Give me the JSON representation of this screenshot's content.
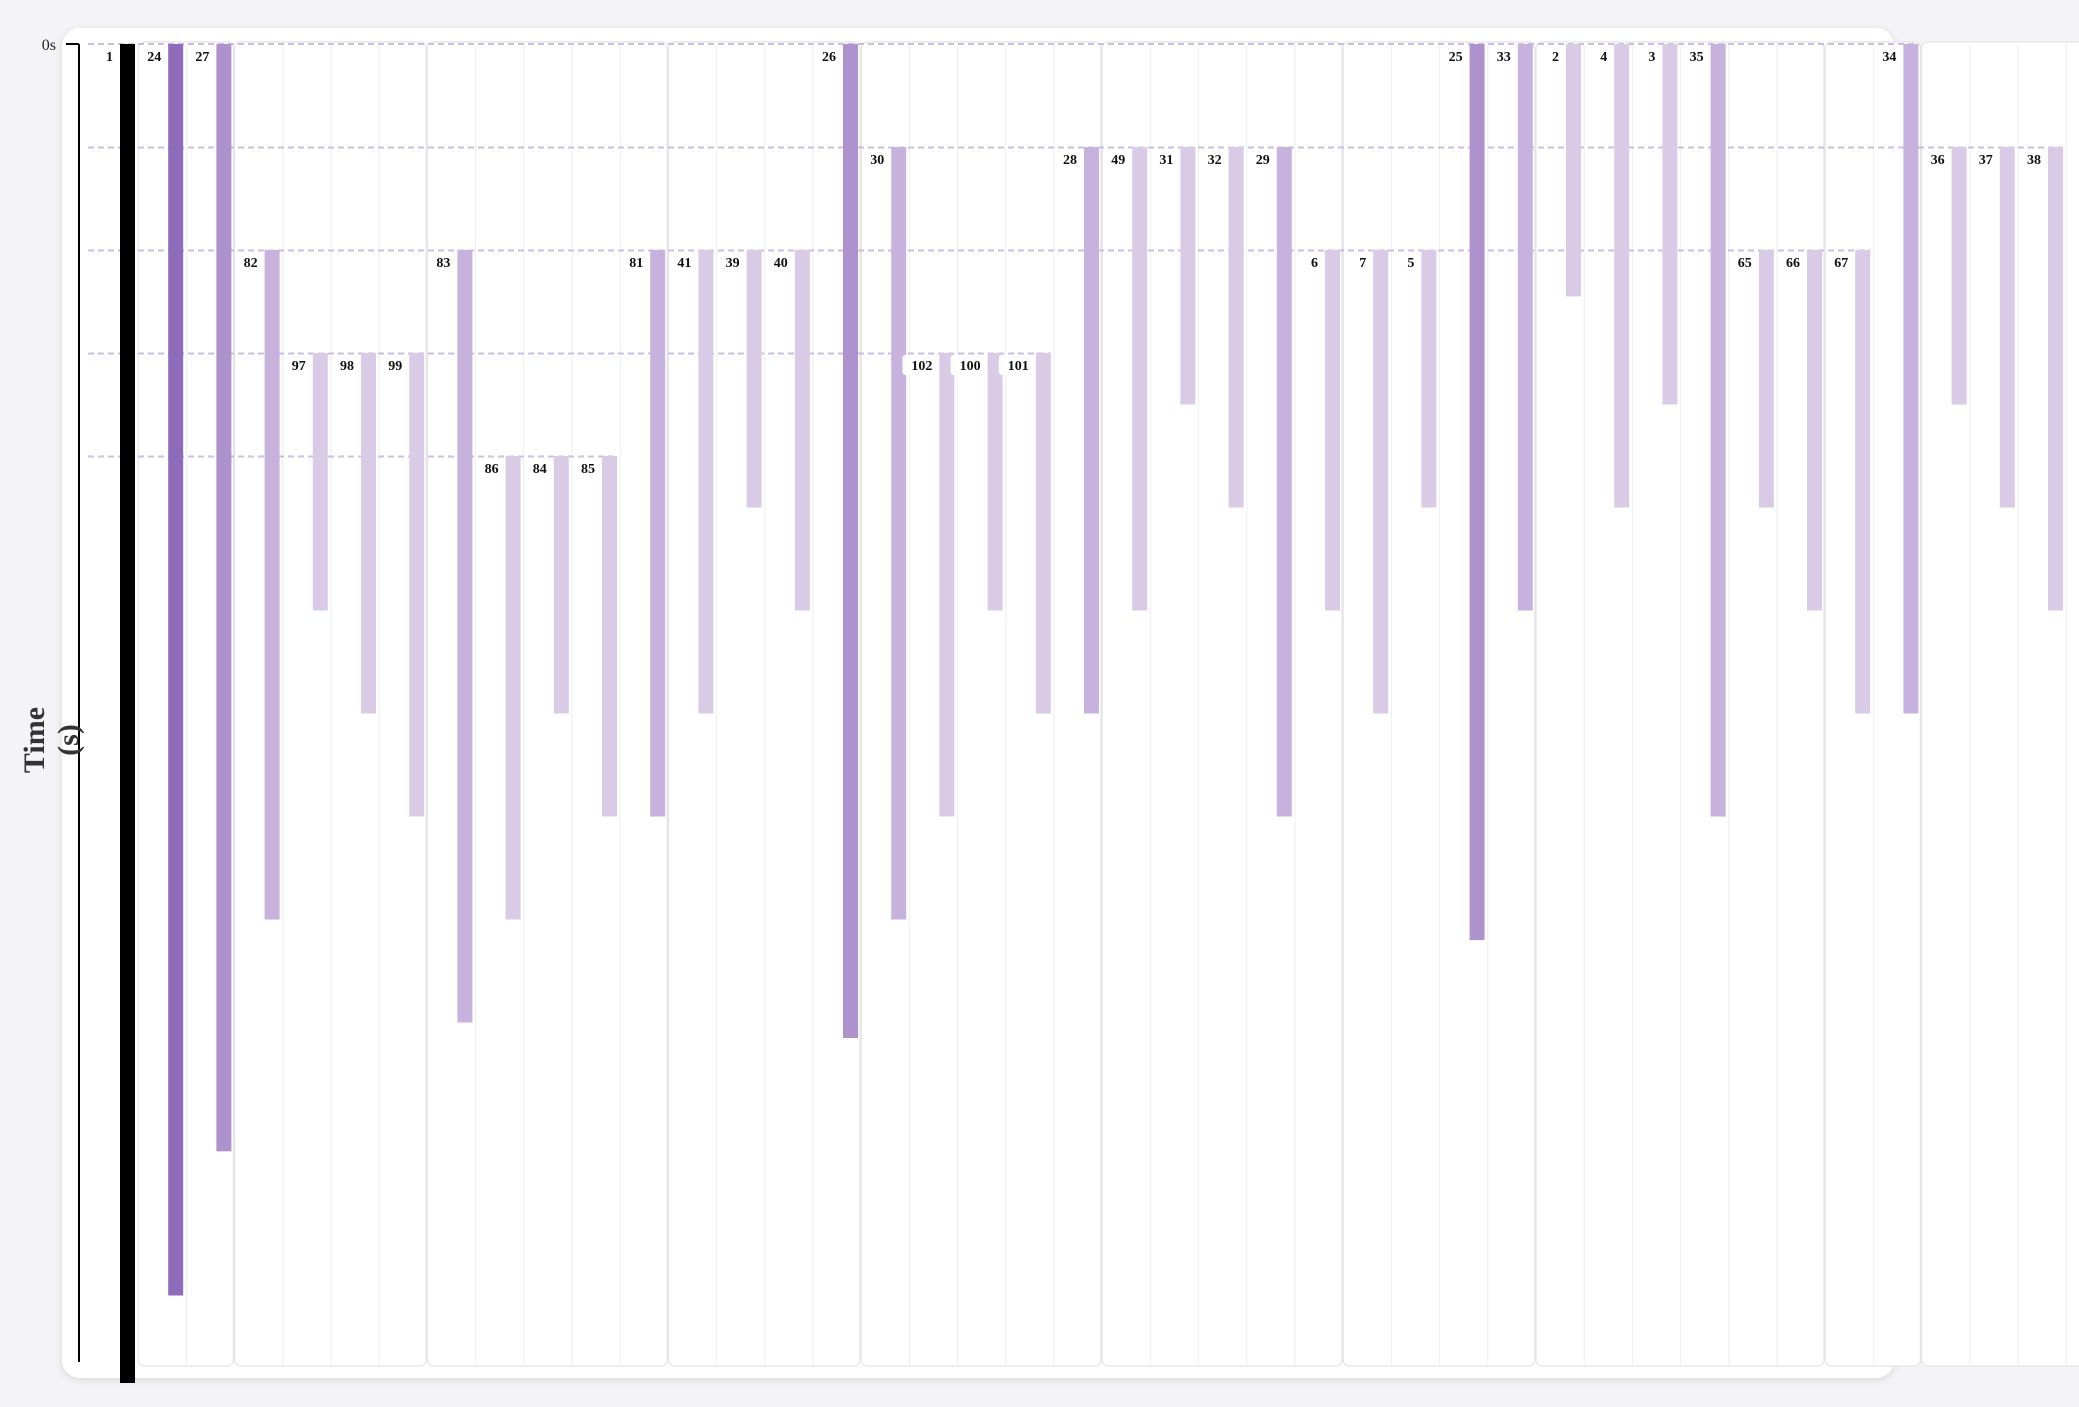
{
  "axis": {
    "y_label": "Time",
    "y_unit": "(s)",
    "y_tick_label": "0s"
  },
  "colors": {
    "root": "#000000",
    "dark": "#8f6bbb",
    "mid": "#ad92cd",
    "light": "#c6b2dc",
    "pale": "#d9cbe6",
    "spawn_line": "#c7b6e0",
    "lane_bg": "#ffffff",
    "lane_border": "#e4e4e8"
  },
  "chart_data": {
    "type": "timeline",
    "time_unit": "s",
    "note_levels": "start/end in ticks of the time axis, 0 = top",
    "tasks": [
      {
        "id": "1",
        "start": 0,
        "end": 13.0,
        "shade": "root"
      },
      {
        "id": "24",
        "start": 0,
        "end": 12.15,
        "shade": "dark"
      },
      {
        "id": "27",
        "start": 0,
        "end": 10.75,
        "shade": "mid"
      },
      {
        "id": "82",
        "start": 2,
        "end": 8.5,
        "shade": "light"
      },
      {
        "id": "97",
        "start": 3,
        "end": 5.5,
        "shade": "pale"
      },
      {
        "id": "98",
        "start": 3,
        "end": 6.5,
        "shade": "pale"
      },
      {
        "id": "99",
        "start": 3,
        "end": 7.5,
        "shade": "pale"
      },
      {
        "id": "83",
        "start": 2,
        "end": 9.5,
        "shade": "light"
      },
      {
        "id": "86",
        "start": 4,
        "end": 8.5,
        "shade": "pale"
      },
      {
        "id": "84",
        "start": 4,
        "end": 6.5,
        "shade": "pale"
      },
      {
        "id": "85",
        "start": 4,
        "end": 7.5,
        "shade": "pale"
      },
      {
        "id": "81",
        "start": 2,
        "end": 7.5,
        "shade": "light"
      },
      {
        "id": "41",
        "start": 2,
        "end": 6.5,
        "shade": "pale"
      },
      {
        "id": "39",
        "start": 2,
        "end": 4.5,
        "shade": "pale"
      },
      {
        "id": "40",
        "start": 2,
        "end": 5.5,
        "shade": "pale"
      },
      {
        "id": "26",
        "start": 0,
        "end": 9.65,
        "shade": "mid"
      },
      {
        "id": "30",
        "start": 1,
        "end": 8.5,
        "shade": "light"
      },
      {
        "id": "102",
        "start": 3,
        "end": 7.5,
        "shade": "pale"
      },
      {
        "id": "100",
        "start": 3,
        "end": 5.5,
        "shade": "pale"
      },
      {
        "id": "101",
        "start": 3,
        "end": 6.5,
        "shade": "pale"
      },
      {
        "id": "28",
        "start": 1,
        "end": 6.5,
        "shade": "light"
      },
      {
        "id": "49",
        "start": 1,
        "end": 5.5,
        "shade": "pale"
      },
      {
        "id": "31",
        "start": 1,
        "end": 3.5,
        "shade": "pale"
      },
      {
        "id": "32",
        "start": 1,
        "end": 4.5,
        "shade": "pale"
      },
      {
        "id": "29",
        "start": 1,
        "end": 7.5,
        "shade": "light"
      },
      {
        "id": "6",
        "start": 2,
        "end": 5.5,
        "shade": "pale"
      },
      {
        "id": "7",
        "start": 2,
        "end": 6.5,
        "shade": "pale"
      },
      {
        "id": "5",
        "start": 2,
        "end": 4.5,
        "shade": "pale"
      },
      {
        "id": "25",
        "start": 0,
        "end": 8.7,
        "shade": "mid"
      },
      {
        "id": "33",
        "start": 0,
        "end": 5.5,
        "shade": "light"
      },
      {
        "id": "2",
        "start": 0,
        "end": 2.45,
        "shade": "pale"
      },
      {
        "id": "4",
        "start": 0,
        "end": 4.5,
        "shade": "pale"
      },
      {
        "id": "3",
        "start": 0,
        "end": 3.5,
        "shade": "pale"
      },
      {
        "id": "35",
        "start": 0,
        "end": 7.5,
        "shade": "light"
      },
      {
        "id": "65",
        "start": 2,
        "end": 4.5,
        "shade": "pale"
      },
      {
        "id": "66",
        "start": 2,
        "end": 5.5,
        "shade": "pale"
      },
      {
        "id": "67",
        "start": 2,
        "end": 6.5,
        "shade": "pale"
      },
      {
        "id": "34",
        "start": 0,
        "end": 6.5,
        "shade": "light"
      },
      {
        "id": "36",
        "start": 1,
        "end": 3.5,
        "shade": "pale"
      },
      {
        "id": "37",
        "start": 1,
        "end": 4.5,
        "shade": "pale"
      },
      {
        "id": "38",
        "start": 1,
        "end": 5.5,
        "shade": "pale"
      }
    ],
    "spawn_levels": [
      0,
      1,
      2,
      3,
      4
    ]
  }
}
